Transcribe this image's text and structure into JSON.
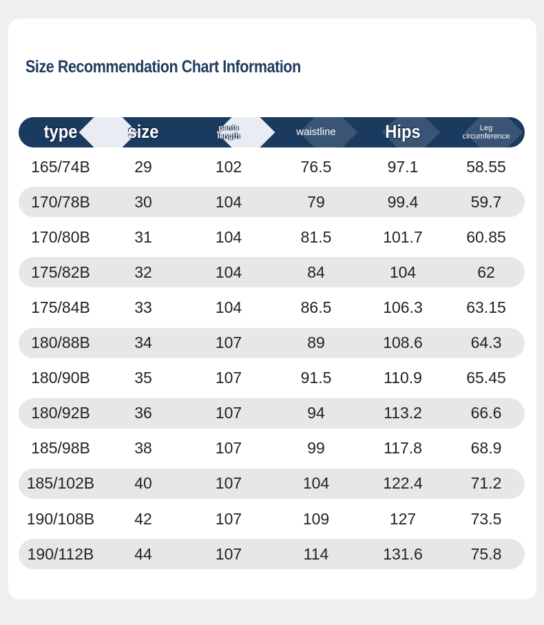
{
  "title": "Size Recommendation Chart Information",
  "headers": [
    {
      "line1": "type",
      "line2": ""
    },
    {
      "line1": "size",
      "line2": ""
    },
    {
      "line1": "pants",
      "line2": "length"
    },
    {
      "line1": "waistline",
      "line2": ""
    },
    {
      "line1": "Hips",
      "line2": ""
    },
    {
      "line1": "Leg",
      "line2": "circumference"
    }
  ],
  "rows": [
    [
      "165/74B",
      "29",
      "102",
      "76.5",
      "97.1",
      "58.55"
    ],
    [
      "170/78B",
      "30",
      "104",
      "79",
      "99.4",
      "59.7"
    ],
    [
      "170/80B",
      "31",
      "104",
      "81.5",
      "101.7",
      "60.85"
    ],
    [
      "175/82B",
      "32",
      "104",
      "84",
      "104",
      "62"
    ],
    [
      "175/84B",
      "33",
      "104",
      "86.5",
      "106.3",
      "63.15"
    ],
    [
      "180/88B",
      "34",
      "107",
      "89",
      "108.6",
      "64.3"
    ],
    [
      "180/90B",
      "35",
      "107",
      "91.5",
      "110.9",
      "65.45"
    ],
    [
      "180/92B",
      "36",
      "107",
      "94",
      "113.2",
      "66.6"
    ],
    [
      "185/98B",
      "38",
      "107",
      "99",
      "117.8",
      "68.9"
    ],
    [
      "185/102B",
      "40",
      "107",
      "104",
      "122.4",
      "71.2"
    ],
    [
      "190/108B",
      "42",
      "107",
      "109",
      "127",
      "73.5"
    ],
    [
      "190/112B",
      "44",
      "107",
      "114",
      "131.6",
      "75.8"
    ]
  ]
}
